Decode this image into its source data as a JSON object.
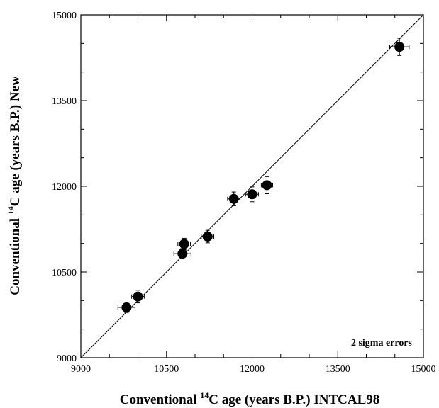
{
  "chart_data": {
    "type": "scatter",
    "title": "",
    "xlabel": {
      "prefix": "Conventional ",
      "superscript": "14",
      "suffix": "C age (years B.P.) INTCAL98"
    },
    "ylabel": {
      "prefix": "Conventional ",
      "superscript": "14",
      "suffix": "C age (years B.P.) New"
    },
    "xlim": [
      9000,
      15000
    ],
    "ylim": [
      9000,
      15000
    ],
    "xticks": [
      "9000",
      "10500",
      "12000",
      "13500",
      "15000"
    ],
    "yticks": [
      "9000",
      "10500",
      "12000",
      "13500",
      "15000"
    ],
    "major_step": 1500,
    "minor_step": 500,
    "grid": false,
    "reference_line": {
      "from": [
        9000,
        9000
      ],
      "to": [
        15000,
        15000
      ]
    },
    "annotation": "2 sigma errors",
    "points": [
      {
        "x": 9800,
        "y": 9880,
        "xerr": 150,
        "yerr": 90
      },
      {
        "x": 10000,
        "y": 10070,
        "xerr": 110,
        "yerr": 110
      },
      {
        "x": 10780,
        "y": 10820,
        "xerr": 150,
        "yerr": 90
      },
      {
        "x": 10810,
        "y": 10990,
        "xerr": 110,
        "yerr": 100
      },
      {
        "x": 11220,
        "y": 11120,
        "xerr": 110,
        "yerr": 110
      },
      {
        "x": 11680,
        "y": 11780,
        "xerr": 110,
        "yerr": 120
      },
      {
        "x": 12000,
        "y": 11860,
        "xerr": 110,
        "yerr": 130
      },
      {
        "x": 12260,
        "y": 12020,
        "xerr": 100,
        "yerr": 150
      },
      {
        "x": 14580,
        "y": 14440,
        "xerr": 170,
        "yerr": 150
      }
    ]
  }
}
